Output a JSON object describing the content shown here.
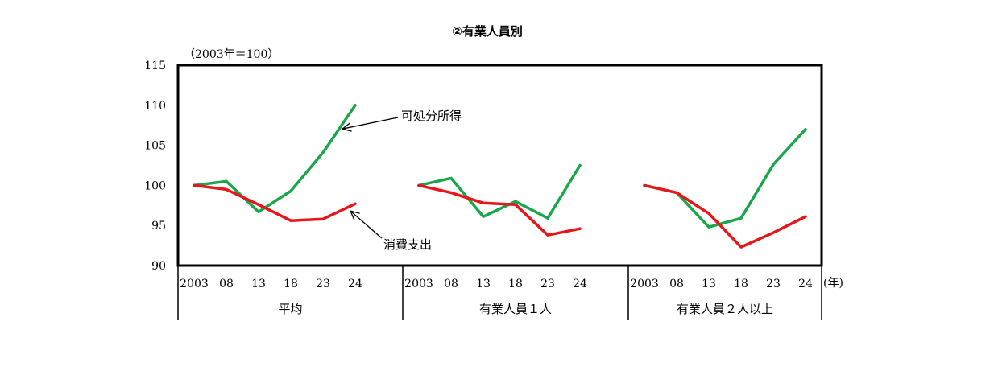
{
  "chart_data": {
    "type": "line",
    "title": "②有業人員別",
    "unit_note": "（2003年＝100）",
    "x_unit": "(年)",
    "ylim": [
      90,
      115
    ],
    "yticks": [
      90,
      95,
      100,
      105,
      110,
      115
    ],
    "grid": false,
    "categories": [
      "2003",
      "08",
      "13",
      "18",
      "23",
      "24"
    ],
    "groups": [
      {
        "label": "平均",
        "series": [
          {
            "name": "可処分所得",
            "values": [
              100.0,
              100.5,
              96.7,
              99.3,
              104.1,
              110.0
            ]
          },
          {
            "name": "消費支出",
            "values": [
              100.0,
              99.5,
              97.6,
              95.6,
              95.8,
              97.7
            ]
          }
        ]
      },
      {
        "label": "有業人員１人",
        "series": [
          {
            "name": "可処分所得",
            "values": [
              100.0,
              100.9,
              96.1,
              98.0,
              95.9,
              102.5
            ]
          },
          {
            "name": "消費支出",
            "values": [
              100.0,
              99.1,
              97.8,
              97.6,
              93.8,
              94.6
            ]
          }
        ]
      },
      {
        "label": "有業人員２人以上",
        "series": [
          {
            "name": "可処分所得",
            "values": [
              100.0,
              99.1,
              94.8,
              95.9,
              102.6,
              107.0
            ]
          },
          {
            "name": "消費支出",
            "values": [
              100.0,
              99.1,
              96.5,
              92.3,
              94.1,
              96.1
            ]
          }
        ]
      }
    ],
    "annotations": [
      {
        "text": "可処分所得",
        "series": "可処分所得"
      },
      {
        "text": "消費支出",
        "series": "消費支出"
      }
    ],
    "colors": {
      "可処分所得": "#1aa64a",
      "消費支出": "#e8161b"
    }
  }
}
